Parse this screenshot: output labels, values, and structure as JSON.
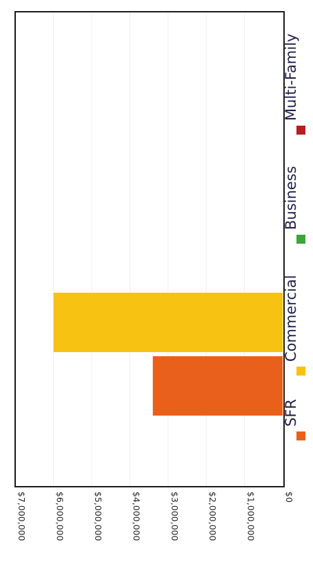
{
  "chart_data": {
    "type": "bar",
    "orientation": "rotated-90-clockwise",
    "title": "",
    "xlabel": "",
    "ylabel": "",
    "ylim": [
      0,
      7000000
    ],
    "tick_values": [
      0,
      1000000,
      2000000,
      3000000,
      4000000,
      5000000,
      6000000,
      7000000
    ],
    "tick_labels": [
      "$0",
      "$1,000,000",
      "$2,000,000",
      "$3,000,000",
      "$4,000,000",
      "$5,000,000",
      "$6,000,000",
      "$7,000,000"
    ],
    "grid": true,
    "legend_position": "bottom",
    "series": [
      {
        "name": "SFR",
        "value": 3400000,
        "color": "#E8601C"
      },
      {
        "name": "Commercial",
        "value": 6000000,
        "color": "#F7C211"
      },
      {
        "name": "Business",
        "value": 0,
        "color": "#3FA53A"
      },
      {
        "name": "Multi-Family",
        "value": 0,
        "color": "#B51F1F"
      }
    ]
  }
}
